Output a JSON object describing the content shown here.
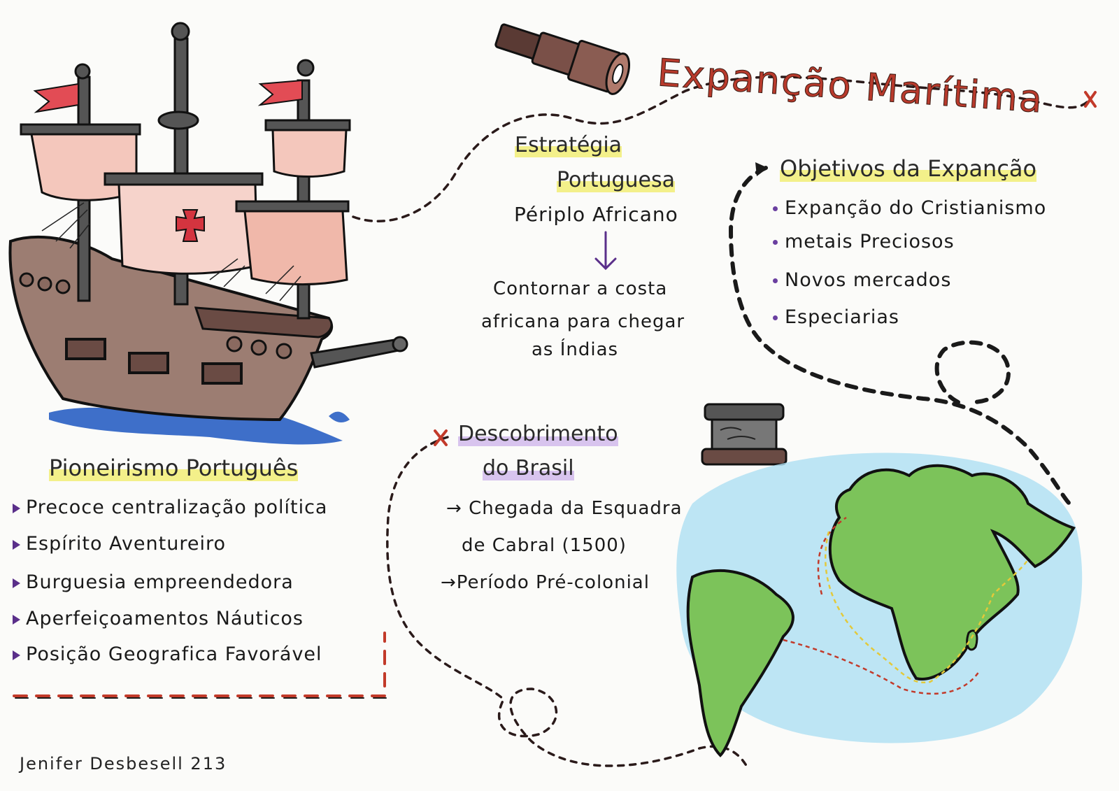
{
  "title": "Expanção Marítima",
  "strategy": {
    "heading_line1": "Estratégia",
    "heading_line2": "Portuguesa",
    "subheading": "Périplo Africano",
    "arrow_icon": "down-arrow-icon",
    "result_line1": "Contornar a costa",
    "result_line2": "africana para chegar",
    "result_line3": "as Índias"
  },
  "objectives": {
    "heading": "Objetivos da Expanção",
    "items": [
      "Expanção do Cristianismo",
      "metais Preciosos",
      "Novos mercados",
      "Especiarias"
    ]
  },
  "pioneering": {
    "heading": "Pioneirismo Português",
    "items": [
      "Precoce centralização política",
      "Espírito Aventureiro",
      "Burguesia empreendedora",
      "Aperfeiçoamentos Náuticos",
      "Posição Geografica Favorável"
    ]
  },
  "discovery": {
    "heading_line1": "Descobrimento",
    "heading_line2": "do Brasil",
    "item1_line1": "Chegada da Esquadra",
    "item1_line2": "de Cabral (1500)",
    "item2": "Período Pré-colonial"
  },
  "signature": "Jenifer Desbesell 213",
  "colors": {
    "title_red": "#b83a2c",
    "highlight_yellow": "#f3f08a",
    "bullet_purple": "#6a3fa0",
    "land_green": "#7cc35a",
    "sea_blue": "#aee0f2",
    "sail_pink": "#f4c7bc",
    "hull_brown": "#9c7d72"
  },
  "icons": [
    "ship-icon",
    "telescope-icon",
    "scroll-icon",
    "world-map-icon",
    "route-x-marker-icon"
  ]
}
